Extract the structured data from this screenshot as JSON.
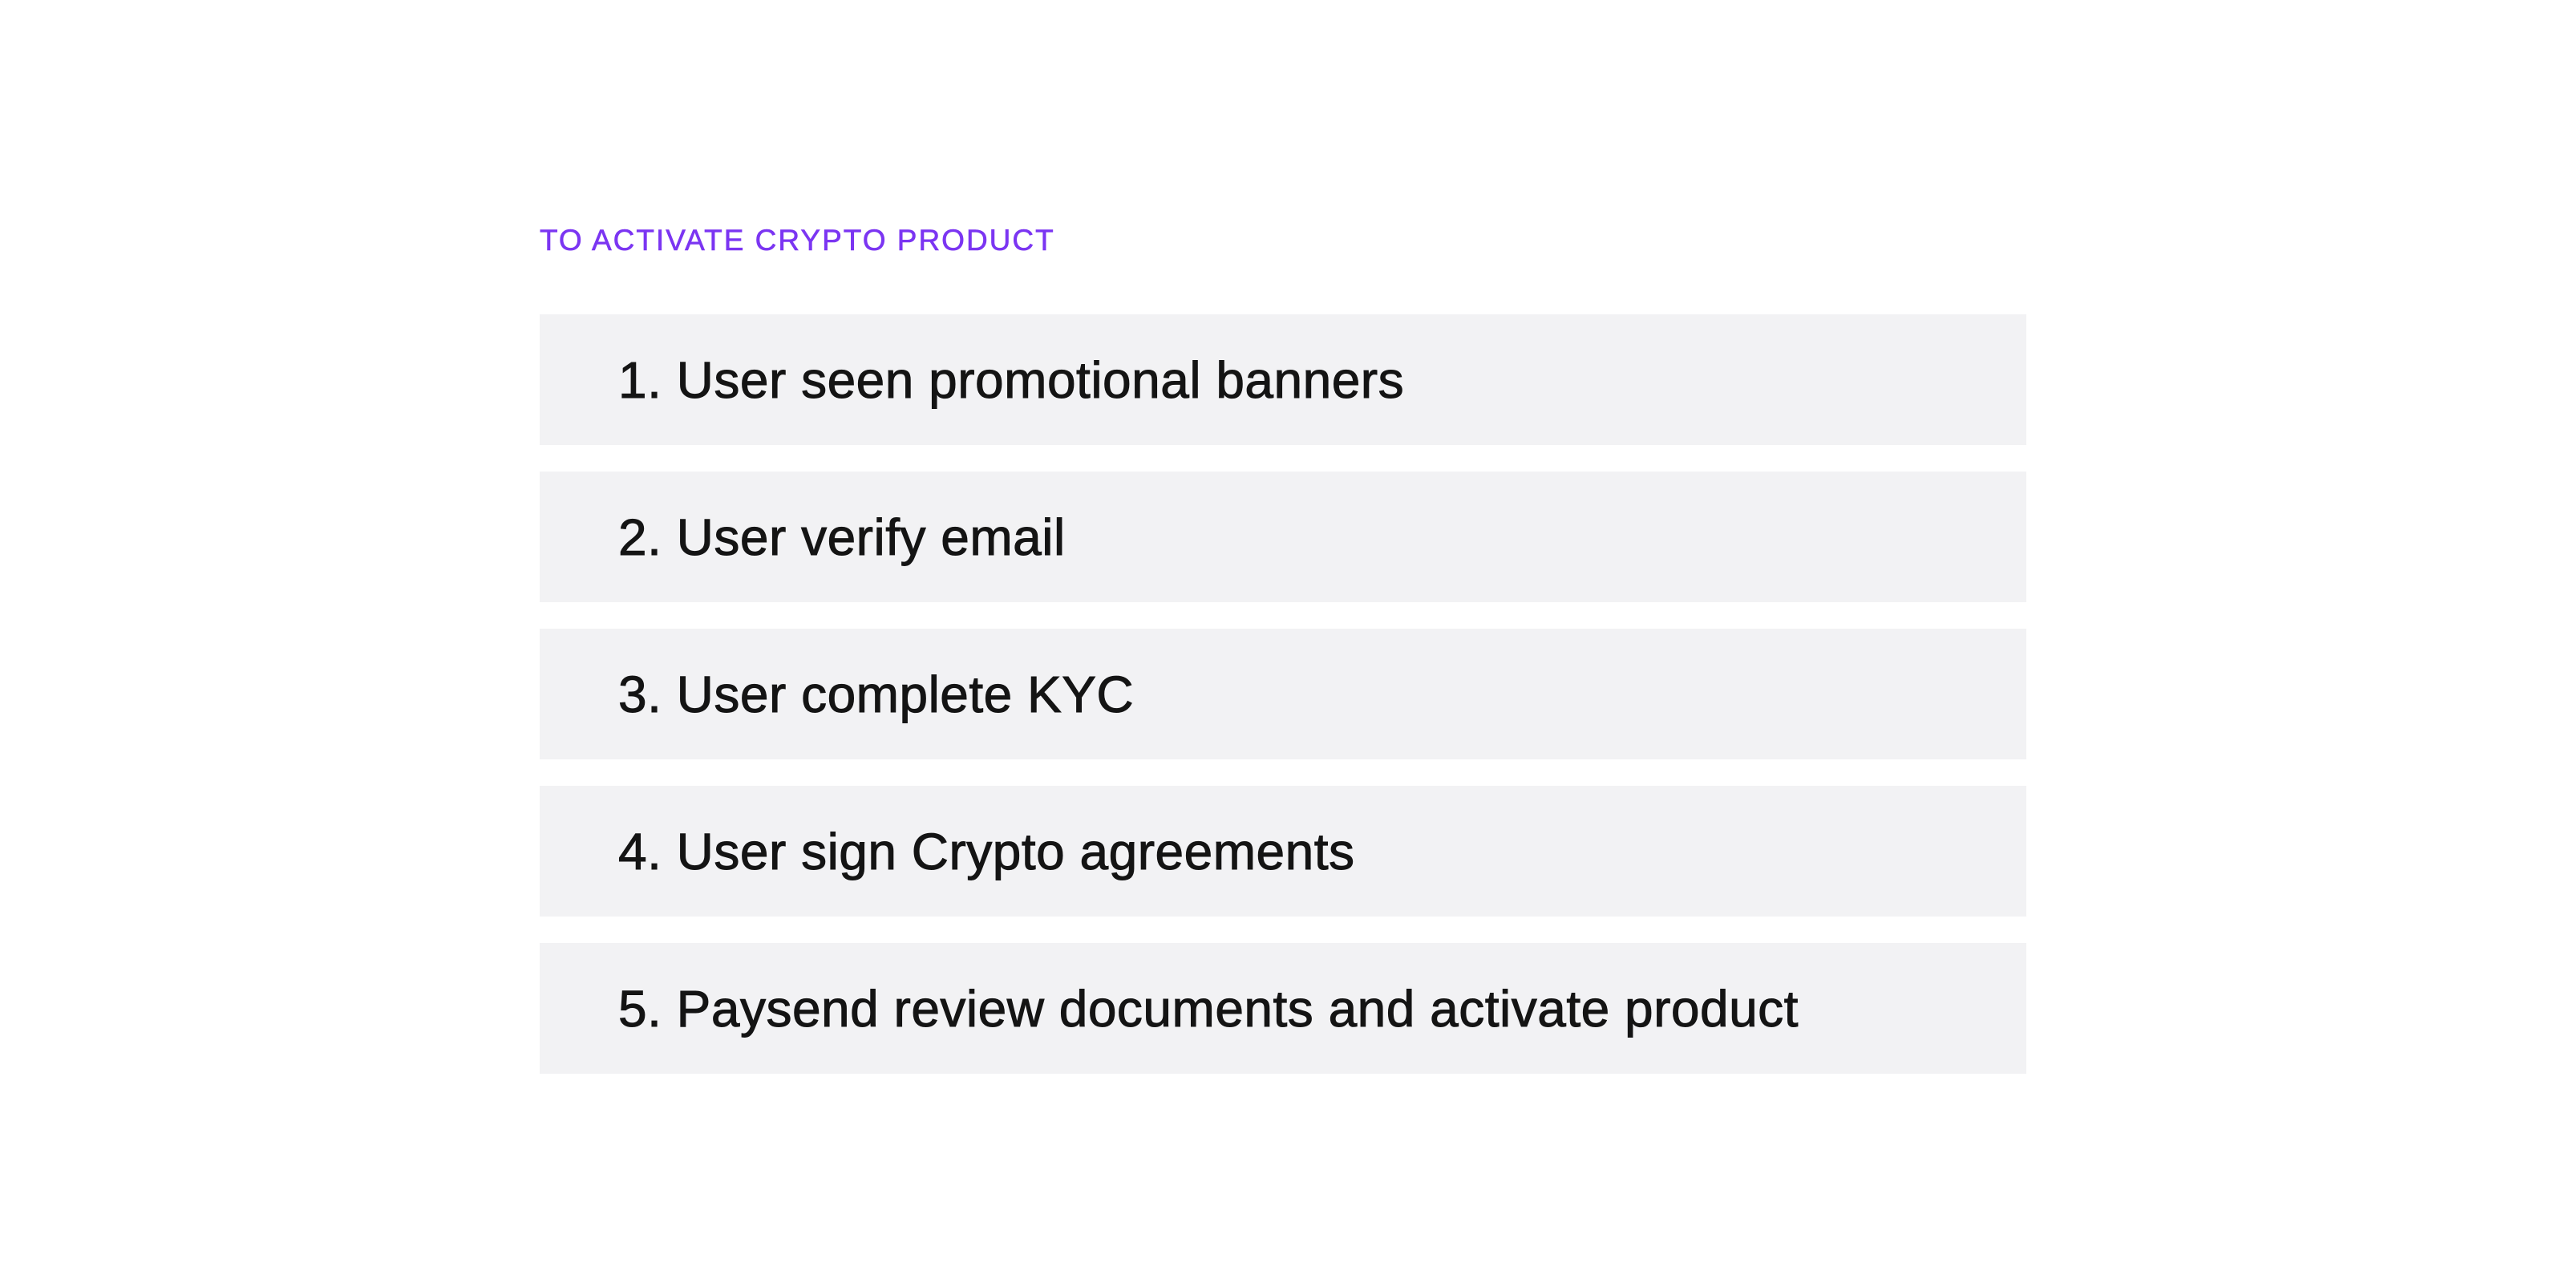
{
  "heading": "TO ACTIVATE CRYPTO PRODUCT",
  "accent_color": "#7b35f2",
  "steps": [
    {
      "label": "1. User seen promotional banners"
    },
    {
      "label": "2. User verify email"
    },
    {
      "label": "3. User complete KYC"
    },
    {
      "label": "4. User sign Crypto agreements"
    },
    {
      "label": "5. Paysend review documents and activate product"
    }
  ]
}
